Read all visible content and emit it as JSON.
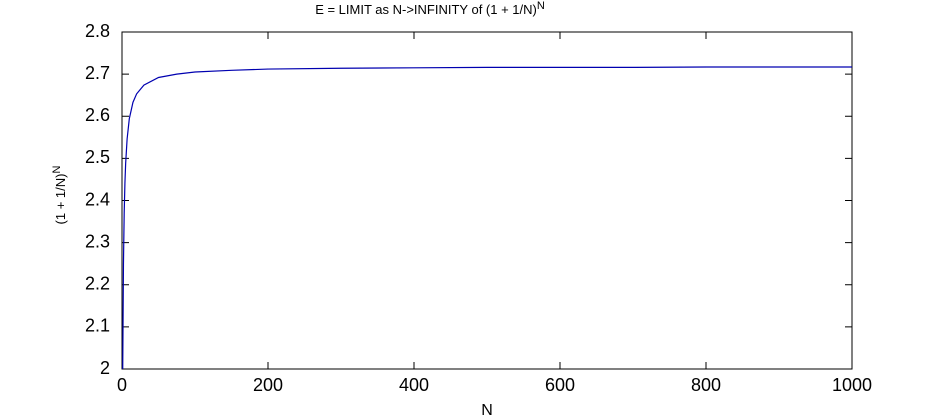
{
  "chart_data": {
    "type": "line",
    "title": "E = LIMIT as N->INFINITY of (1 + 1/N)",
    "title_superscript": "N",
    "x_label": "N",
    "y_label": "(1 + 1/N)",
    "y_label_superscript": "N",
    "x": [
      1,
      2,
      3,
      4,
      5,
      7,
      10,
      15,
      20,
      30,
      50,
      75,
      100,
      150,
      200,
      300,
      400,
      500,
      600,
      700,
      800,
      900,
      1000
    ],
    "series": [
      {
        "color": "#0000b0",
        "values": [
          2,
          2.25,
          2.37,
          2.441,
          2.488,
          2.546,
          2.594,
          2.633,
          2.653,
          2.674,
          2.692,
          2.7,
          2.705,
          2.709,
          2.712,
          2.714,
          2.715,
          2.716,
          2.716,
          2.716,
          2.717,
          2.717,
          2.717
        ]
      }
    ],
    "xlim": [
      0,
      1000
    ],
    "xticks": [
      0,
      200,
      400,
      600,
      800,
      1000
    ],
    "ylim": [
      2,
      2.8
    ],
    "yticks": [
      2,
      2.1,
      2.2,
      2.3,
      2.4,
      2.5,
      2.6,
      2.7,
      2.8
    ]
  }
}
